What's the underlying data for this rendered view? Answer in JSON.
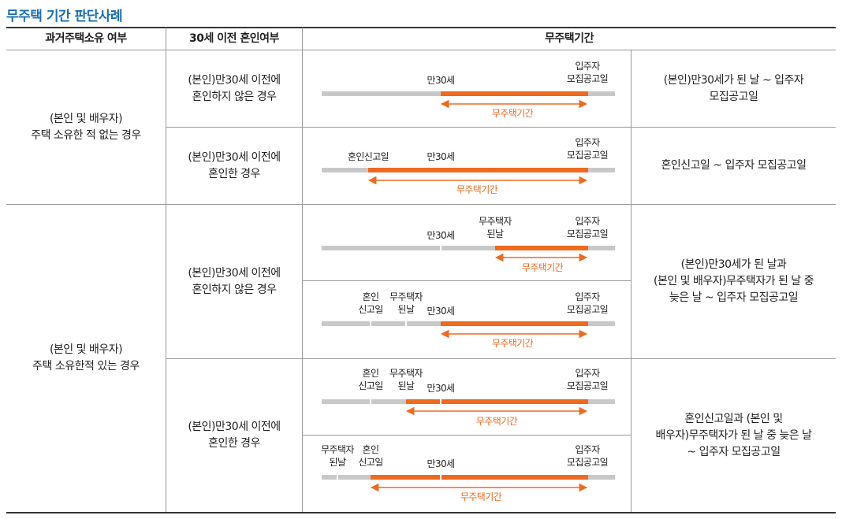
{
  "title": "무주택 기간 판단사례",
  "headers": {
    "col1": "과거주택소유 여부",
    "col2": "30세 이전 혼인여부",
    "col3": "무주택기간"
  },
  "groups": [
    {
      "ownership": "(본인 및 배우자)\n주택 소유한 적 없는 경우"
    },
    {
      "ownership": "(본인 및 배우자)\n주택 소유한적 있는 경우"
    }
  ],
  "marriage": [
    "(본인)만30세 이전에\n혼인하지 않은 경우",
    "(본인)만30세 이전에\n혼인한 경우",
    "(본인)만30세 이전에\n혼인하지 않은 경우",
    "(본인)만30세 이전에\n혼인한 경우"
  ],
  "descriptions": [
    "(본인)만30세가 된 날 ~ 입주자\n모집공고일",
    "혼인신고일 ~ 입주자 모집공고일",
    "(본인)만30세가 된 날과\n(본인 및 배우자)무주택자가 된 날 중\n늦은 날 ~ 입주자 모집공고일",
    "혼인신고일과 (본인 및\n배우자)무주택자가 된 날 중 늦은 날\n~ 입주자 모집공고일"
  ],
  "labels": {
    "age30": "만30세",
    "notice_l1": "입주자",
    "notice_l2": "모집공고일",
    "marriage_single": "혼인신고일",
    "marriage_l1": "혼인",
    "marriage_l2": "신고일",
    "homeless_l1": "무주택자",
    "homeless_l2": "된날",
    "period": "무주택기간"
  },
  "colors": {
    "title": "#1a6fb5",
    "bar_gray": "#c8c8c8",
    "bar_orange": "#ee6a1f",
    "grid": "#999999",
    "rule_dark": "#333333"
  }
}
